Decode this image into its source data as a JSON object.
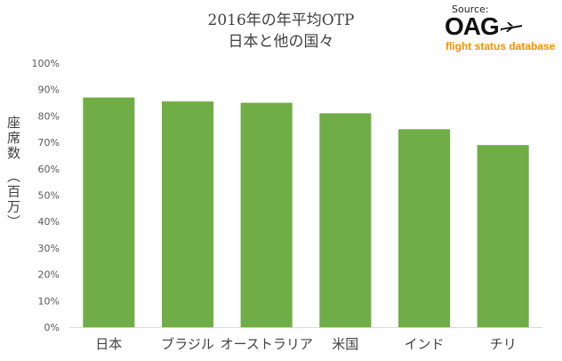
{
  "title_line1": "2016年の年平均OTP",
  "title_line2": "日本と他の国々",
  "source": {
    "label": "Source:",
    "logo_text": "OAG",
    "tagline": "flight status database",
    "logo_icon": "airplane-icon",
    "tagline_color": "#f39200"
  },
  "chart_data": {
    "type": "bar",
    "title": "2016年の年平均OTP\n日本と他の国々",
    "ylabel": "座席数　（百万）",
    "xlabel": "",
    "categories": [
      "日本",
      "ブラジル",
      "オーストラリア",
      "米国",
      "インド",
      "チリ"
    ],
    "values": [
      87,
      85.5,
      85,
      81,
      75,
      69
    ],
    "ylim": [
      0,
      100
    ],
    "yticks": [
      "0%",
      "10%",
      "20%",
      "30%",
      "40%",
      "50%",
      "60%",
      "70%",
      "80%",
      "90%",
      "100%"
    ],
    "bar_color": "#70ad47",
    "grid": false,
    "legend": "none"
  }
}
